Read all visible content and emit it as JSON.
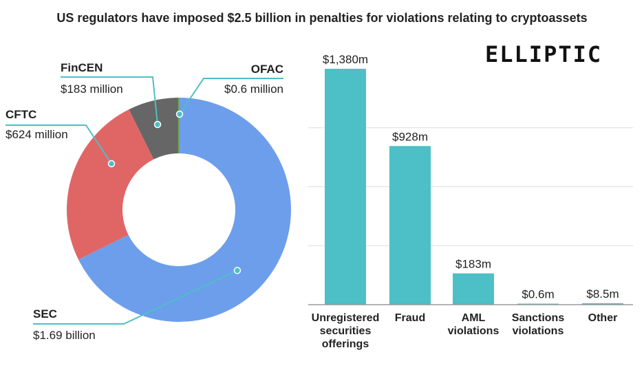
{
  "title": "US regulators have imposed $2.5 billion in penalties for violations relating to cryptoassets",
  "logo_text": "ELLIPTIC",
  "colors": {
    "SEC": "#6d9eeb",
    "CFTC": "#e06666",
    "FinCEN": "#666666",
    "OFAC": "#6aa84f",
    "bar": "#4dbfc6",
    "leader": "#4dbfc6"
  },
  "chart_data": [
    {
      "type": "pie",
      "subtype": "donut",
      "slices": [
        {
          "name": "SEC",
          "label": "$1.69 billion",
          "value": 1690,
          "color": "#6d9eeb"
        },
        {
          "name": "CFTC",
          "label": "$624 million",
          "value": 624,
          "color": "#e06666"
        },
        {
          "name": "FinCEN",
          "label": "$183 million",
          "value": 183,
          "color": "#666666"
        },
        {
          "name": "OFAC",
          "label": "$0.6 million",
          "value": 0.6,
          "color": "#6aa84f"
        }
      ]
    },
    {
      "type": "bar",
      "categories": [
        [
          "Unregistered",
          "securities",
          "offerings"
        ],
        [
          "Fraud"
        ],
        [
          "AML",
          "violations"
        ],
        [
          "Sanctions",
          "violations"
        ],
        [
          "Other"
        ]
      ],
      "values": [
        1380,
        928,
        183,
        0.6,
        8.5
      ],
      "value_labels": [
        "$1,380m",
        "$928m",
        "$183m",
        "$0.6m",
        "$8.5m"
      ],
      "ylim": [
        0,
        1380
      ],
      "grid": true
    }
  ]
}
